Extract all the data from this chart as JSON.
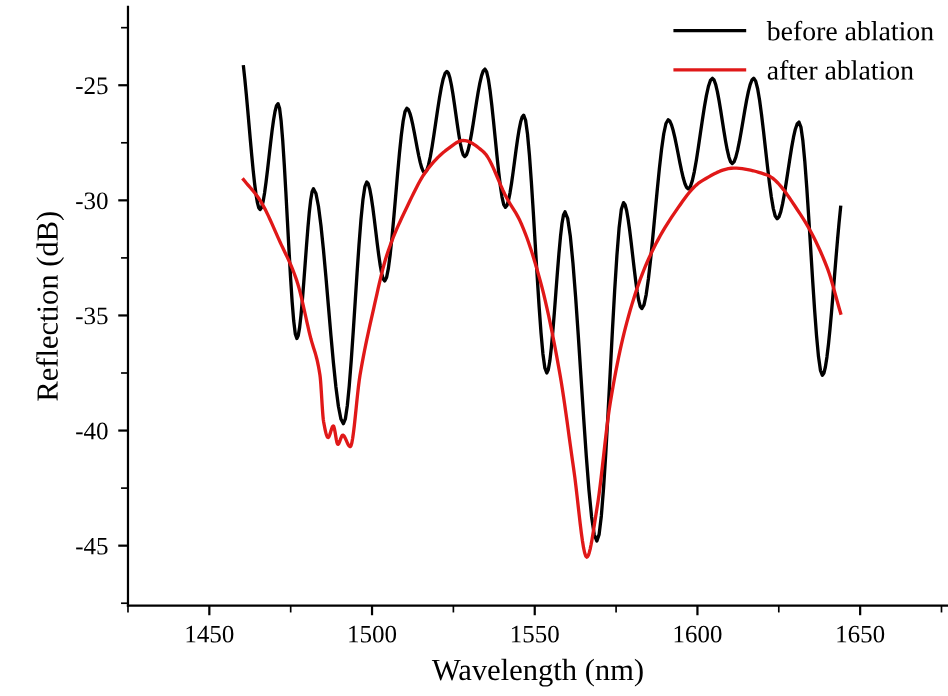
{
  "chart_data": {
    "type": "line",
    "xlabel": "Wavelength (nm)",
    "ylabel": "Reflection (dB)",
    "xlim": [
      1425,
      1677
    ],
    "xticks": [
      1450,
      1500,
      1550,
      1600,
      1650
    ],
    "ylim": [
      -47.6,
      -21.6
    ],
    "yticks": [
      -45,
      -40,
      -35,
      -30,
      -25
    ],
    "legend": "top right",
    "grid": false,
    "marker": "none",
    "line_style": "solid",
    "series": [
      {
        "name": "before ablation",
        "color": "#000000",
        "x": [
          1460.5,
          1465.6,
          1471.1,
          1476.9,
          1482,
          1491.2,
          1498.4,
          1503.9,
          1510.7,
          1516.2,
          1523,
          1528.5,
          1534.7,
          1541,
          1546.6,
          1553.7,
          1559.3,
          1569.1,
          1577.3,
          1582.9,
          1591,
          1597.2,
          1604.6,
          1610.7,
          1617.3,
          1624.5,
          1631.2,
          1638.4,
          1644
        ],
        "values": [
          -24.2,
          -30.4,
          -25.8,
          -36.0,
          -29.5,
          -39.7,
          -29.2,
          -33.5,
          -26.0,
          -28.8,
          -24.4,
          -28.1,
          -24.3,
          -30.3,
          -26.3,
          -37.5,
          -30.5,
          -44.8,
          -30.1,
          -34.7,
          -26.5,
          -29.5,
          -24.7,
          -28.4,
          -24.7,
          -30.8,
          -26.6,
          -37.6,
          -30.3
        ]
      },
      {
        "name": "after ablation",
        "color": "#e01818",
        "x": [
          1460.5,
          1465.6,
          1471.7,
          1476.9,
          1481,
          1484,
          1485.1,
          1486.5,
          1488.1,
          1489.5,
          1491,
          1493.3,
          1496.3,
          1500.5,
          1504.5,
          1510.7,
          1516.8,
          1523,
          1528,
          1534.3,
          1541.4,
          1545.5,
          1551.7,
          1557.8,
          1562,
          1566,
          1569.1,
          1573.2,
          1578.3,
          1584.5,
          1592.7,
          1600.9,
          1611.2,
          1621.4,
          1631.6,
          1639.8,
          1644
        ],
        "values": [
          -29.1,
          -30.0,
          -31.8,
          -33.5,
          -35.9,
          -37.6,
          -39.6,
          -40.3,
          -39.8,
          -40.6,
          -40.2,
          -40.7,
          -37.6,
          -34.7,
          -32.4,
          -30.3,
          -28.7,
          -27.8,
          -27.4,
          -27.9,
          -29.9,
          -30.9,
          -33.5,
          -37.6,
          -41.7,
          -45.5,
          -43.4,
          -38.8,
          -35.3,
          -32.7,
          -30.6,
          -29.2,
          -28.6,
          -28.9,
          -30.6,
          -32.9,
          -34.9
        ]
      }
    ]
  }
}
